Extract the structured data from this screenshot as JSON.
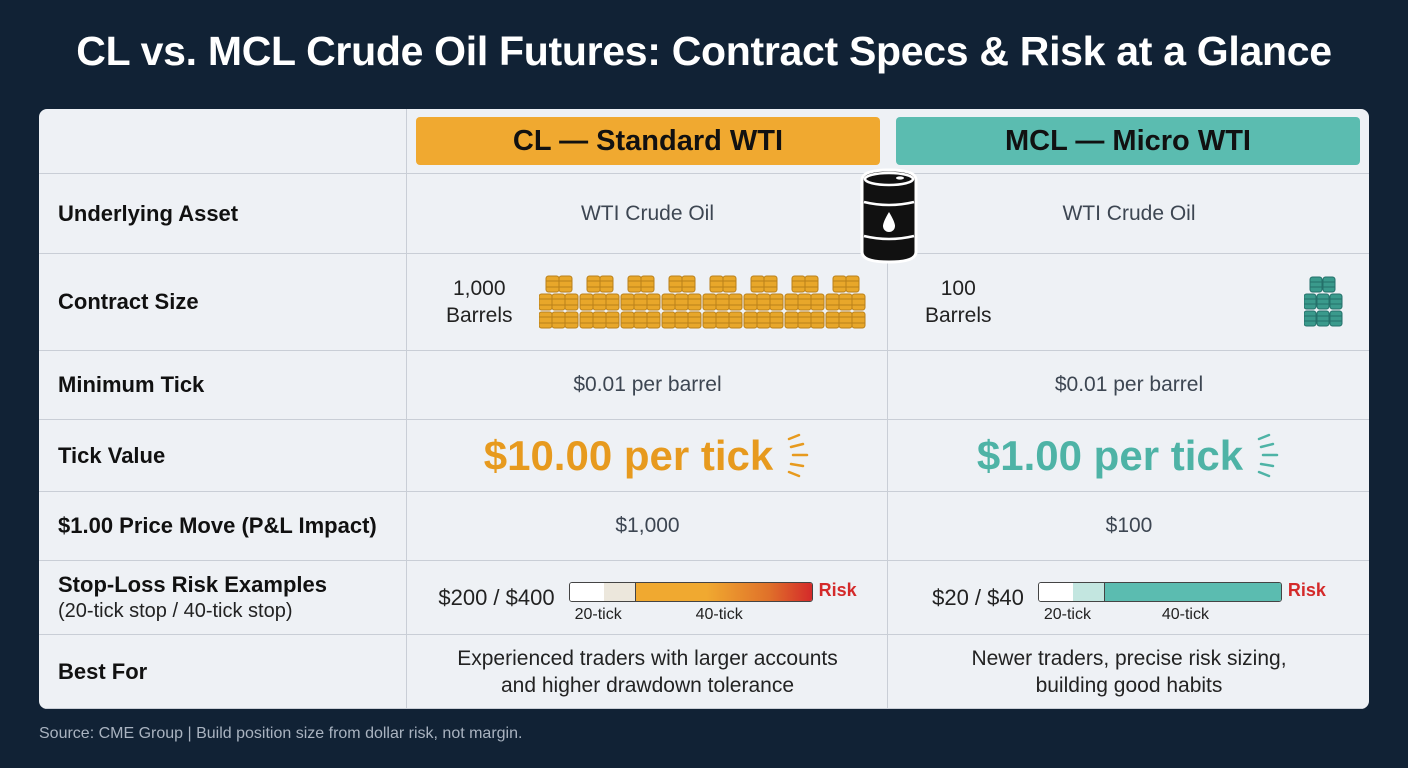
{
  "title": "CL vs. MCL Crude Oil Futures: Contract Specs & Risk at a Glance",
  "columns": {
    "cl": {
      "label": "CL — Standard WTI",
      "color": "#f0a930"
    },
    "mcl": {
      "label": "MCL — Micro WTI",
      "color": "#5bbcb0"
    }
  },
  "rows": {
    "underlying": {
      "label": "Underlying Asset",
      "cl": "WTI Crude Oil",
      "mcl": "WTI Crude Oil"
    },
    "contract_size": {
      "label": "Contract Size",
      "cl_qty": "1,000",
      "cl_unit": "Barrels",
      "mcl_qty": "100",
      "mcl_unit": "Barrels"
    },
    "min_tick": {
      "label": "Minimum Tick",
      "cl": "$0.01 per barrel",
      "mcl": "$0.01 per barrel"
    },
    "tick_value": {
      "label": "Tick Value",
      "cl": "$10.00 per tick",
      "mcl": "$1.00 per tick"
    },
    "price_move": {
      "label": "$1.00 Price Move (P&L Impact)",
      "cl": "$1,000",
      "mcl": "$100"
    },
    "stop_loss": {
      "label": "Stop-Loss Risk Examples",
      "sublabel": "(20-tick stop / 40-tick stop)",
      "cl": "$200 / $400",
      "mcl": "$20 / $40",
      "risk_word": "Risk",
      "tick_20": "20-tick",
      "tick_40": "40-tick"
    },
    "best_for": {
      "label": "Best For",
      "cl_line1": "Experienced traders with larger accounts",
      "cl_line2": "and higher drawdown tolerance",
      "mcl_line1": "Newer traders, precise risk sizing,",
      "mcl_line2": "building good habits"
    }
  },
  "source": "Source: CME Group | Build position size from dollar risk, not margin."
}
